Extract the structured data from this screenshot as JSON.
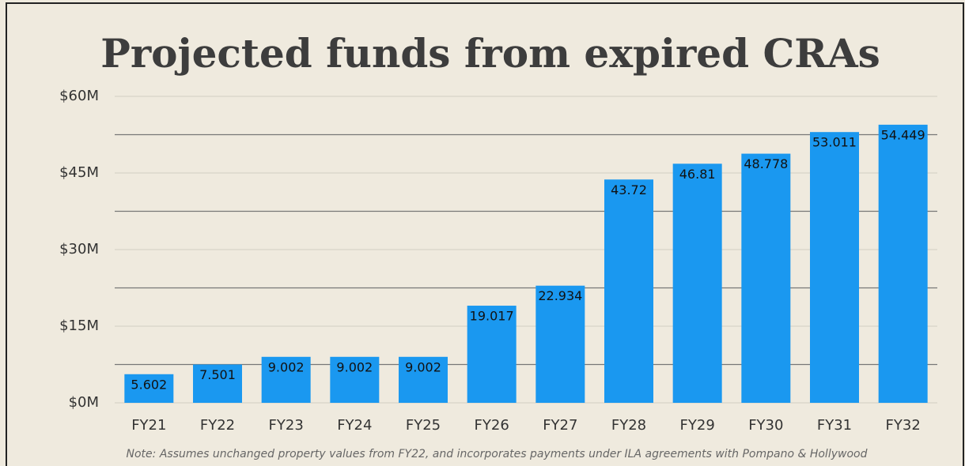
{
  "chart_data": {
    "type": "bar",
    "title": "Projected funds from expired CRAs",
    "categories": [
      "FY21",
      "FY22",
      "FY23",
      "FY24",
      "FY25",
      "FY26",
      "FY27",
      "FY28",
      "FY29",
      "FY30",
      "FY31",
      "FY32"
    ],
    "values": [
      5.602,
      7.501,
      9.002,
      9.002,
      9.002,
      19.017,
      22.934,
      43.72,
      46.81,
      48.778,
      53.011,
      54.449
    ],
    "color": "#1a98f0",
    "ylim": [
      0,
      60
    ],
    "yticks": [
      {
        "value": 0,
        "label": "$0M"
      },
      {
        "value": 15,
        "label": "$15M"
      },
      {
        "value": 30,
        "label": "$30M"
      },
      {
        "value": 45,
        "label": "$45M"
      },
      {
        "value": 60,
        "label": "$60M"
      }
    ],
    "minor_yticks": [
      7.5,
      22.5,
      37.5,
      52.5
    ],
    "grid": true,
    "note": "Note: Assumes unchanged property values from FY22, and incorporates payments under ILA agreements with Pompano & Hollywood"
  }
}
